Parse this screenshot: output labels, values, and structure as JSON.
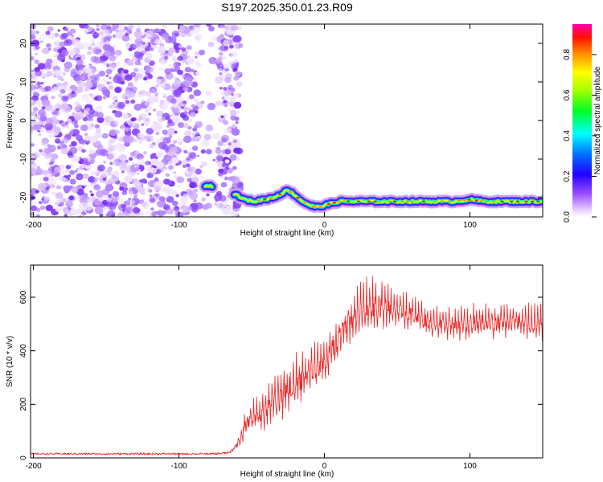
{
  "title": "S197.2025.350.01.23.R09",
  "chart_data": [
    {
      "type": "heatmap",
      "xlabel": "Height of straight line (km)",
      "ylabel": "Frequency (Hz)",
      "xlim": [
        -202,
        150
      ],
      "ylim": [
        -25,
        25
      ],
      "xticks": [
        -200,
        -100,
        0,
        100
      ],
      "yticks": [
        -20,
        -10,
        0,
        10,
        20
      ],
      "colorbar": {
        "label": "Normalized spectral amplitude",
        "range": [
          0,
          0.95
        ],
        "ticks": [
          0.0,
          0.2,
          0.4,
          0.6,
          0.8
        ]
      },
      "noise_region_x": [
        -202,
        -58
      ],
      "noise_gap_x": [
        -86,
        -73
      ],
      "carrier_line": {
        "x": [
          -82,
          -77,
          -62,
          -55,
          -48,
          -42,
          -35,
          -30,
          -25,
          -20,
          -15,
          -10,
          -5,
          0,
          5,
          10,
          30,
          60,
          90,
          100,
          110,
          130,
          150
        ],
        "y": [
          -17,
          -17,
          -19,
          -20.5,
          -21,
          -20.5,
          -20,
          -19,
          -18,
          -19.5,
          -21,
          -22,
          -22.5,
          -22,
          -21.5,
          -21,
          -21,
          -21,
          -21,
          -20.5,
          -21,
          -21,
          -21
        ]
      }
    },
    {
      "type": "line",
      "xlabel": "Height of straight line (km)",
      "ylabel": "SNR (10 * v/v)",
      "xlim": [
        -202,
        150
      ],
      "ylim": [
        0,
        720
      ],
      "xticks": [
        -200,
        -100,
        0,
        100
      ],
      "yticks": [
        0,
        200,
        400,
        600
      ],
      "series": [
        {
          "color": "#ee2222",
          "x": [
            -202,
            -150,
            -100,
            -75,
            -65,
            -60,
            -55,
            -50,
            -45,
            -40,
            -35,
            -30,
            -25,
            -20,
            -15,
            -10,
            -5,
            0,
            5,
            10,
            15,
            20,
            25,
            30,
            40,
            50,
            60,
            70,
            80,
            90,
            100,
            110,
            120,
            130,
            140,
            150
          ],
          "mean": [
            15,
            15,
            15,
            15,
            20,
            50,
            110,
            150,
            160,
            180,
            210,
            230,
            260,
            280,
            300,
            320,
            340,
            360,
            400,
            440,
            490,
            520,
            550,
            560,
            560,
            550,
            540,
            510,
            500,
            490,
            500,
            510,
            500,
            510,
            500,
            500
          ],
          "amp": [
            10,
            10,
            10,
            10,
            12,
            30,
            60,
            70,
            80,
            100,
            110,
            120,
            120,
            130,
            120,
            110,
            110,
            110,
            110,
            110,
            110,
            110,
            120,
            130,
            110,
            80,
            80,
            70,
            70,
            70,
            80,
            80,
            80,
            80,
            80,
            80
          ]
        }
      ]
    }
  ]
}
